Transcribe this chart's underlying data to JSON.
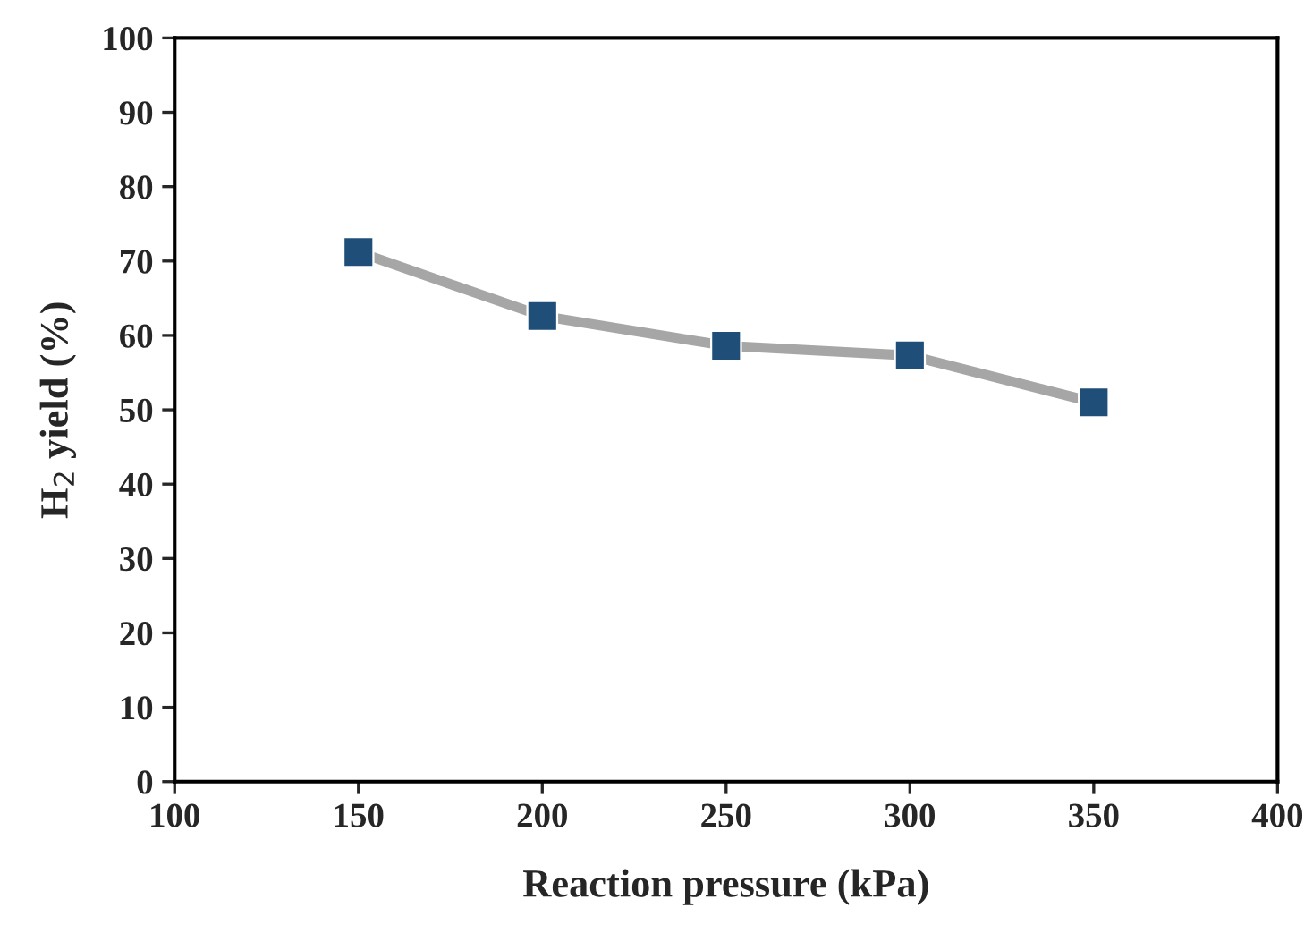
{
  "chart_data": {
    "type": "line",
    "xlabel": "Reaction pressure (kPa)",
    "ylabel": "H$_{2}$ yield (%)",
    "x": [
      150,
      200,
      250,
      300,
      350
    ],
    "series": [
      {
        "color": "#1f4e79",
        "values": [
          71.2,
          62.6,
          58.6,
          57.3,
          51.0
        ]
      }
    ],
    "xlim": [
      100,
      400
    ],
    "xticks": [
      100,
      150,
      200,
      250,
      300,
      350,
      400
    ],
    "ylim": [
      0,
      100
    ],
    "yticks": [
      0,
      10,
      20,
      30,
      40,
      50,
      60,
      70,
      80,
      90,
      100
    ],
    "marker": "square",
    "line_style": "solid",
    "grid": false,
    "legend": false
  }
}
